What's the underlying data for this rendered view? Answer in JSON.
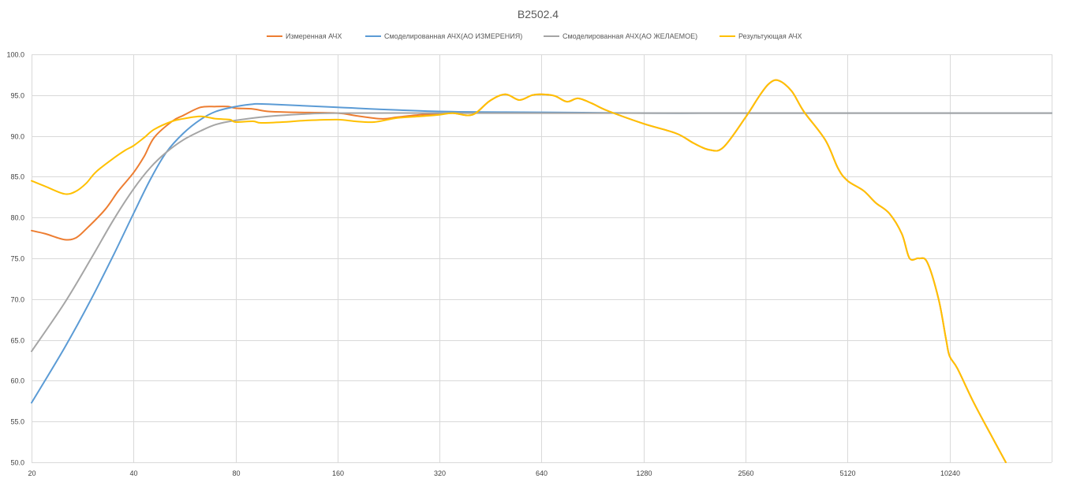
{
  "chart_data": {
    "type": "line",
    "title": "B2502.4",
    "xlabel": "",
    "ylabel": "",
    "x_scale": "log2",
    "xlim": [
      20,
      20480
    ],
    "ylim": [
      50,
      100
    ],
    "x_ticks": [
      20,
      40,
      80,
      160,
      320,
      640,
      1280,
      2560,
      5120,
      10240
    ],
    "y_ticks": [
      "50.0",
      "55.0",
      "60.0",
      "65.0",
      "70.0",
      "75.0",
      "80.0",
      "85.0",
      "90.0",
      "95.0",
      "100.0"
    ],
    "grid": true,
    "legend_position": "top",
    "series": [
      {
        "name": "Измеренная АЧХ",
        "color": "#ED7D31",
        "points": [
          [
            20,
            78.4
          ],
          [
            22,
            78.0
          ],
          [
            25,
            77.3
          ],
          [
            27,
            77.5
          ],
          [
            29,
            78.6
          ],
          [
            33,
            81.0
          ],
          [
            36,
            83.2
          ],
          [
            40,
            85.5
          ],
          [
            43,
            87.5
          ],
          [
            46,
            89.8
          ],
          [
            52,
            91.8
          ],
          [
            56,
            92.5
          ],
          [
            63,
            93.5
          ],
          [
            70,
            93.6
          ],
          [
            76,
            93.6
          ],
          [
            80,
            93.4
          ],
          [
            90,
            93.3
          ],
          [
            100,
            93.0
          ],
          [
            120,
            92.9
          ],
          [
            160,
            92.8
          ],
          [
            180,
            92.5
          ],
          [
            215,
            92.1
          ],
          [
            240,
            92.3
          ],
          [
            280,
            92.6
          ],
          [
            320,
            92.7
          ],
          [
            350,
            92.8
          ],
          [
            400,
            92.6
          ],
          [
            450,
            94.3
          ],
          [
            500,
            95.1
          ],
          [
            550,
            94.4
          ],
          [
            600,
            95.0
          ],
          [
            640,
            95.1
          ],
          [
            700,
            94.9
          ],
          [
            760,
            94.2
          ],
          [
            820,
            94.6
          ],
          [
            900,
            94.0
          ],
          [
            1000,
            93.1
          ],
          [
            1280,
            91.5
          ],
          [
            1600,
            90.3
          ],
          [
            1800,
            89.1
          ],
          [
            2000,
            88.3
          ],
          [
            2200,
            88.6
          ],
          [
            2560,
            92.3
          ],
          [
            2800,
            94.8
          ],
          [
            3000,
            96.4
          ],
          [
            3200,
            96.8
          ],
          [
            3500,
            95.5
          ],
          [
            3800,
            93.0
          ],
          [
            4400,
            89.5
          ],
          [
            4800,
            86.0
          ],
          [
            5120,
            84.5
          ],
          [
            5700,
            83.3
          ],
          [
            6200,
            81.8
          ],
          [
            6800,
            80.5
          ],
          [
            7400,
            78.0
          ],
          [
            7800,
            75.0
          ],
          [
            8300,
            75.0
          ],
          [
            8800,
            74.5
          ],
          [
            9500,
            70.0
          ],
          [
            10000,
            65.0
          ],
          [
            10240,
            63.0
          ],
          [
            10800,
            61.5
          ],
          [
            12000,
            57.5
          ],
          [
            13500,
            53.5
          ],
          [
            15000,
            50.0
          ]
        ]
      },
      {
        "name": "Смоделированная АЧХ(АО ИЗМЕРЕНИЯ)",
        "color": "#5B9BD5",
        "points": [
          [
            20,
            57.3
          ],
          [
            25,
            64.0
          ],
          [
            30,
            70.0
          ],
          [
            35,
            75.5
          ],
          [
            40,
            80.5
          ],
          [
            45,
            84.8
          ],
          [
            50,
            88.0
          ],
          [
            56,
            90.3
          ],
          [
            63,
            92.0
          ],
          [
            70,
            93.0
          ],
          [
            80,
            93.6
          ],
          [
            90,
            93.9
          ],
          [
            100,
            93.9
          ],
          [
            160,
            93.5
          ],
          [
            320,
            93.0
          ],
          [
            640,
            92.9
          ],
          [
            1280,
            92.8
          ],
          [
            2560,
            92.8
          ],
          [
            5120,
            92.8
          ],
          [
            10240,
            92.8
          ],
          [
            20480,
            92.8
          ]
        ]
      },
      {
        "name": "Смоделированная АЧХ(АО ЖЕЛАЕМОЕ)",
        "color": "#A5A5A5",
        "points": [
          [
            20,
            63.6
          ],
          [
            25,
            69.5
          ],
          [
            30,
            75.0
          ],
          [
            35,
            79.8
          ],
          [
            40,
            83.5
          ],
          [
            45,
            86.2
          ],
          [
            50,
            88.0
          ],
          [
            56,
            89.5
          ],
          [
            63,
            90.6
          ],
          [
            70,
            91.4
          ],
          [
            80,
            91.9
          ],
          [
            100,
            92.4
          ],
          [
            130,
            92.7
          ],
          [
            160,
            92.8
          ],
          [
            320,
            92.8
          ],
          [
            640,
            92.8
          ],
          [
            1280,
            92.8
          ],
          [
            2560,
            92.8
          ],
          [
            5120,
            92.8
          ],
          [
            10240,
            92.8
          ],
          [
            20480,
            92.8
          ]
        ]
      },
      {
        "name": "Результующая АЧХ",
        "color": "#FFC000",
        "points": [
          [
            20,
            84.5
          ],
          [
            22,
            83.8
          ],
          [
            25,
            82.9
          ],
          [
            27,
            83.2
          ],
          [
            29,
            84.2
          ],
          [
            31,
            85.6
          ],
          [
            35,
            87.3
          ],
          [
            38,
            88.3
          ],
          [
            40,
            88.8
          ],
          [
            43,
            89.8
          ],
          [
            46,
            90.8
          ],
          [
            52,
            91.8
          ],
          [
            56,
            92.1
          ],
          [
            63,
            92.4
          ],
          [
            70,
            92.1
          ],
          [
            77,
            92.0
          ],
          [
            80,
            91.7
          ],
          [
            90,
            91.8
          ],
          [
            95,
            91.6
          ],
          [
            110,
            91.7
          ],
          [
            130,
            91.9
          ],
          [
            160,
            92.0
          ],
          [
            180,
            91.8
          ],
          [
            205,
            91.7
          ],
          [
            240,
            92.2
          ],
          [
            280,
            92.4
          ],
          [
            320,
            92.6
          ],
          [
            350,
            92.8
          ],
          [
            400,
            92.6
          ],
          [
            450,
            94.3
          ],
          [
            500,
            95.1
          ],
          [
            550,
            94.4
          ],
          [
            600,
            95.0
          ],
          [
            640,
            95.1
          ],
          [
            700,
            94.9
          ],
          [
            760,
            94.2
          ],
          [
            820,
            94.6
          ],
          [
            900,
            94.0
          ],
          [
            1000,
            93.1
          ],
          [
            1280,
            91.5
          ],
          [
            1600,
            90.3
          ],
          [
            1800,
            89.1
          ],
          [
            2000,
            88.3
          ],
          [
            2200,
            88.6
          ],
          [
            2560,
            92.3
          ],
          [
            2800,
            94.8
          ],
          [
            3000,
            96.4
          ],
          [
            3200,
            96.8
          ],
          [
            3500,
            95.5
          ],
          [
            3800,
            93.0
          ],
          [
            4400,
            89.5
          ],
          [
            4800,
            86.0
          ],
          [
            5120,
            84.5
          ],
          [
            5700,
            83.3
          ],
          [
            6200,
            81.8
          ],
          [
            6800,
            80.5
          ],
          [
            7400,
            78.0
          ],
          [
            7800,
            75.0
          ],
          [
            8300,
            75.0
          ],
          [
            8800,
            74.5
          ],
          [
            9500,
            70.0
          ],
          [
            10000,
            65.0
          ],
          [
            10240,
            63.0
          ],
          [
            10800,
            61.5
          ],
          [
            12000,
            57.5
          ],
          [
            13500,
            53.5
          ],
          [
            15000,
            50.0
          ]
        ]
      }
    ]
  }
}
